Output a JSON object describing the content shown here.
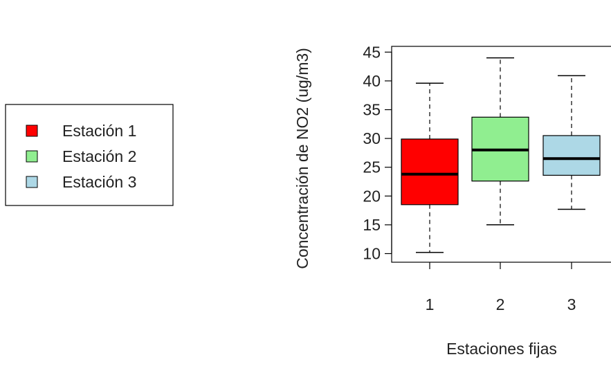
{
  "chart_data": {
    "type": "boxplot",
    "title": "",
    "xlabel": "Estaciones fijas",
    "ylabel": "Concentración de NO2 (ug/m3)",
    "categories": [
      "1",
      "2",
      "3"
    ],
    "ylim": [
      8.5,
      46
    ],
    "yticks": [
      10,
      15,
      20,
      25,
      30,
      35,
      40,
      45
    ],
    "grid": false,
    "legend_position": "left",
    "series": [
      {
        "name": "Estación 1",
        "color": "#ff0000",
        "min": 10.2,
        "q1": 18.5,
        "median": 23.8,
        "q3": 29.9,
        "max": 39.6
      },
      {
        "name": "Estación 2",
        "color": "#90ee90",
        "min": 15.0,
        "q1": 22.6,
        "median": 28.0,
        "q3": 33.7,
        "max": 44.0
      },
      {
        "name": "Estación 3",
        "color": "#add8e6",
        "min": 17.7,
        "q1": 23.6,
        "median": 26.5,
        "q3": 30.5,
        "max": 40.9
      }
    ]
  }
}
